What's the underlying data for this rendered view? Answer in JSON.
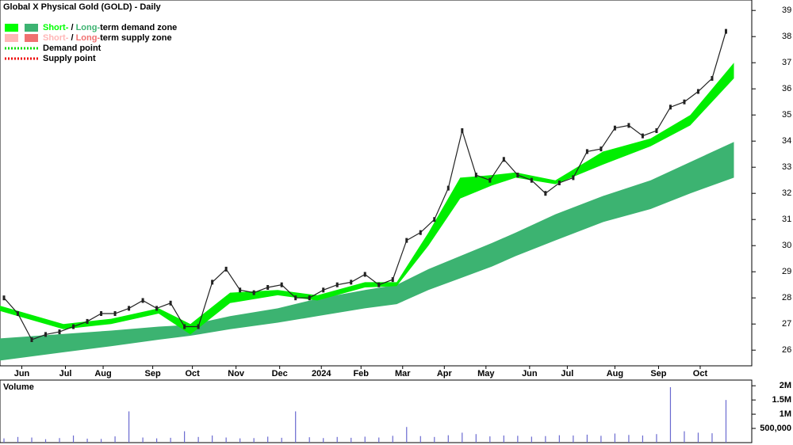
{
  "chart_data": [
    {
      "type": "line",
      "title": "Global X Physical Gold (GOLD) - Daily",
      "legend": [
        {
          "short": "Short-",
          "sep": " / ",
          "long": "Long-",
          "rest": "term demand zone",
          "colors": [
            "#00ff00",
            "#3cb371"
          ]
        },
        {
          "short": "Short-",
          "sep": " / ",
          "long": "Long-",
          "rest": "term supply zone",
          "colors": [
            "#ffb6b6",
            "#f07070"
          ]
        }
      ],
      "points_legend": [
        {
          "label": "Demand point",
          "color": "#00dd00"
        },
        {
          "label": "Supply point",
          "color": "#ee0000"
        }
      ],
      "xlim": [
        0,
        379
      ],
      "xticks": [
        {
          "value": 11,
          "label": "Jun"
        },
        {
          "value": 33,
          "label": "Jul"
        },
        {
          "value": 52,
          "label": "Aug"
        },
        {
          "value": 77,
          "label": "Sep"
        },
        {
          "value": 97,
          "label": "Oct"
        },
        {
          "value": 119,
          "label": "Nov"
        },
        {
          "value": 141,
          "label": "Dec"
        },
        {
          "value": 162,
          "label": "2024"
        },
        {
          "value": 182,
          "label": "Feb"
        },
        {
          "value": 203,
          "label": "Mar"
        },
        {
          "value": 224,
          "label": "Apr"
        },
        {
          "value": 245,
          "label": "May"
        },
        {
          "value": 267,
          "label": "Jun"
        },
        {
          "value": 286,
          "label": "Jul"
        },
        {
          "value": 310,
          "label": "Aug"
        },
        {
          "value": 332,
          "label": "Sep"
        },
        {
          "value": 353,
          "label": "Oct"
        }
      ],
      "ylim": [
        25.4,
        39.4
      ],
      "yticks": [
        26,
        27,
        28,
        29,
        30,
        31,
        32,
        33,
        34,
        35,
        36,
        37,
        38,
        39
      ],
      "zone_x": [
        0,
        32,
        56,
        80,
        96,
        116,
        140,
        160,
        184,
        200,
        216,
        232,
        248,
        260,
        280,
        304,
        328,
        348,
        370
      ],
      "zones": [
        {
          "color": "#3cb371",
          "upper": [
            26.45,
            26.62,
            26.75,
            26.9,
            26.97,
            27.3,
            27.6,
            27.97,
            28.3,
            28.5,
            29.1,
            29.6,
            30.1,
            30.5,
            31.2,
            31.9,
            32.5,
            33.2,
            33.97
          ],
          "lower": [
            25.6,
            25.92,
            26.15,
            26.4,
            26.55,
            26.8,
            27.05,
            27.3,
            27.6,
            27.76,
            28.3,
            28.75,
            29.2,
            29.6,
            30.2,
            30.9,
            31.4,
            32.0,
            32.6
          ]
        },
        {
          "color": "#00ee00",
          "upper": [
            27.7,
            27.0,
            27.2,
            27.6,
            27.0,
            28.2,
            28.3,
            28.1,
            28.6,
            28.6,
            30.5,
            32.6,
            32.7,
            32.8,
            32.5,
            33.6,
            34.1,
            35.0,
            37.0
          ],
          "lower": [
            27.5,
            26.8,
            27.0,
            27.4,
            26.6,
            27.8,
            28.1,
            27.9,
            28.4,
            28.45,
            30.0,
            31.8,
            32.3,
            32.6,
            32.35,
            33.1,
            33.8,
            34.6,
            36.4
          ]
        }
      ],
      "x": [
        2,
        9,
        16,
        23,
        30,
        37,
        44,
        51,
        58,
        65,
        72,
        79,
        86,
        93,
        100,
        107,
        114,
        121,
        128,
        135,
        142,
        149,
        156,
        163,
        170,
        177,
        184,
        191,
        198,
        205,
        212,
        219,
        226,
        233,
        240,
        247,
        254,
        261,
        268,
        275,
        282,
        289,
        296,
        303,
        310,
        317,
        324,
        331,
        338,
        345,
        352,
        359,
        366
      ],
      "series": [
        {
          "color": "#222222",
          "values": [
            28.0,
            27.4,
            26.4,
            26.6,
            26.7,
            26.9,
            27.1,
            27.4,
            27.4,
            27.6,
            27.9,
            27.6,
            27.8,
            26.9,
            26.9,
            28.6,
            29.1,
            28.3,
            28.2,
            28.4,
            28.5,
            28.0,
            28.0,
            28.3,
            28.5,
            28.6,
            28.9,
            28.5,
            28.7,
            30.2,
            30.5,
            31.0,
            32.2,
            34.4,
            32.7,
            32.5,
            33.3,
            32.7,
            32.5,
            32.0,
            32.4,
            32.6,
            33.6,
            33.7,
            34.5,
            34.6,
            34.2,
            34.4,
            35.3,
            35.5,
            35.9,
            36.4,
            38.2
          ]
        }
      ]
    },
    {
      "type": "bar",
      "title": "Volume",
      "title_color": "#551a8b",
      "xlim": [
        0,
        379
      ],
      "ylim": [
        0,
        2200000
      ],
      "yticks": [
        {
          "value": 500000,
          "label": "500,000"
        },
        {
          "value": 1000000,
          "label": "1M"
        },
        {
          "value": 1500000,
          "label": "1.5M"
        },
        {
          "value": 2000000,
          "label": "2M"
        }
      ],
      "color": "#6a6ad0",
      "x": [
        2,
        9,
        16,
        23,
        30,
        37,
        44,
        51,
        58,
        65,
        72,
        79,
        86,
        93,
        100,
        107,
        114,
        121,
        128,
        135,
        142,
        149,
        156,
        163,
        170,
        177,
        184,
        191,
        198,
        205,
        212,
        219,
        226,
        233,
        240,
        247,
        254,
        261,
        268,
        275,
        282,
        289,
        296,
        303,
        310,
        317,
        324,
        331,
        338,
        345,
        352,
        359,
        366
      ],
      "values": [
        150000,
        200000,
        180000,
        120000,
        160000,
        250000,
        140000,
        130000,
        220000,
        1100000,
        180000,
        150000,
        170000,
        400000,
        200000,
        250000,
        180000,
        150000,
        160000,
        210000,
        170000,
        1100000,
        190000,
        160000,
        200000,
        170000,
        210000,
        180000,
        240000,
        550000,
        230000,
        200000,
        260000,
        350000,
        300000,
        220000,
        250000,
        240000,
        210000,
        230000,
        260000,
        250000,
        280000,
        240000,
        320000,
        270000,
        250000,
        300000,
        1950000,
        400000,
        350000,
        330000,
        1500000
      ]
    }
  ]
}
